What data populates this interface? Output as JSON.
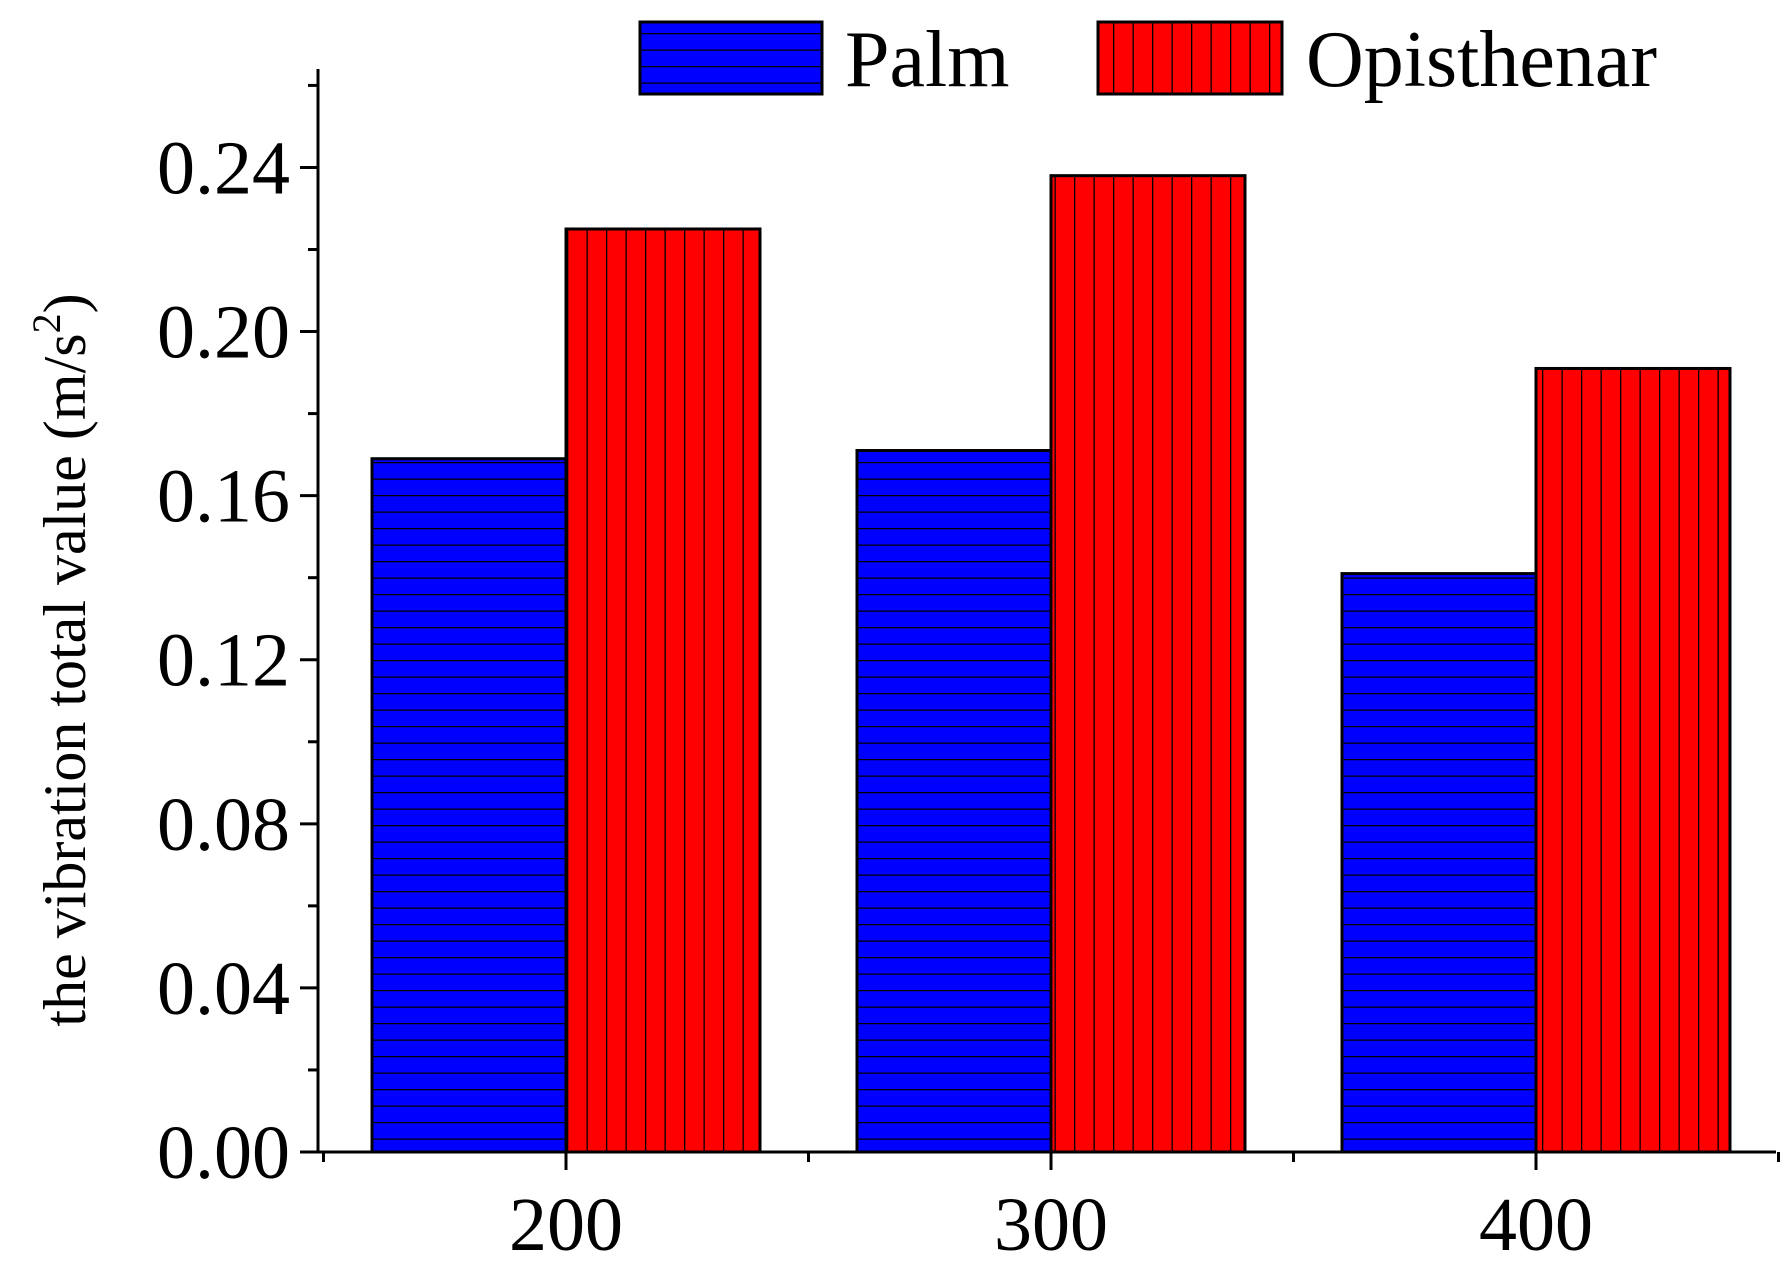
{
  "chart_data": {
    "type": "bar",
    "title": "",
    "xlabel": "",
    "ylabel": "the vibration total value (m/s",
    "ylabel_superscript": "2",
    "ylabel_close": ")",
    "categories": [
      "200",
      "300",
      "400"
    ],
    "series": [
      {
        "name": "Palm",
        "color": "#0000ff",
        "pattern": "horizontal-lines",
        "values": [
          0.169,
          0.171,
          0.141
        ]
      },
      {
        "name": "Opisthenar",
        "color": "#ff0000",
        "pattern": "vertical-lines",
        "values": [
          0.225,
          0.238,
          0.191
        ]
      }
    ],
    "ylim": [
      0,
      0.264
    ],
    "yticks": [
      0.0,
      0.04,
      0.08,
      0.12,
      0.16,
      0.2,
      0.24
    ],
    "ytick_labels": [
      "0.00",
      "0.04",
      "0.08",
      "0.12",
      "0.16",
      "0.20",
      "0.24"
    ],
    "y_minor_step": 0.02,
    "grid": false,
    "legend_position": "top"
  }
}
